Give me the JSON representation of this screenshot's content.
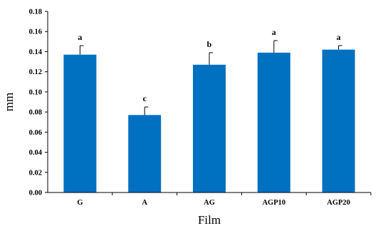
{
  "chart_data": {
    "type": "bar",
    "categories": [
      "G",
      "A",
      "AG",
      "AGP10",
      "AGP20"
    ],
    "values": [
      0.137,
      0.077,
      0.127,
      0.139,
      0.142
    ],
    "errors": [
      0.009,
      0.008,
      0.012,
      0.012,
      0.004
    ],
    "significance": [
      "a",
      "c",
      "b",
      "a",
      "a"
    ],
    "xlabel": "Film",
    "ylabel": "mm",
    "ylim": [
      0,
      0.18
    ],
    "yticks": [
      "0.00",
      "0.02",
      "0.04",
      "0.06",
      "0.08",
      "0.10",
      "0.12",
      "0.14",
      "0.16",
      "0.18"
    ],
    "bar_color": "#0070C0",
    "grid": false
  }
}
